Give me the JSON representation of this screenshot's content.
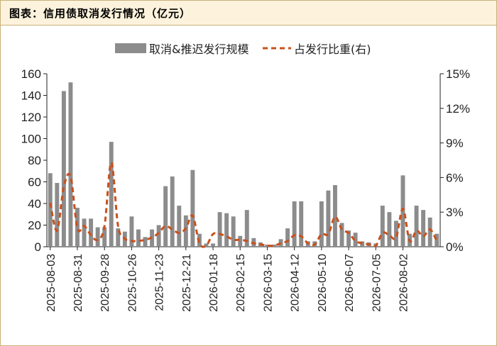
{
  "header": {
    "title": "图表：信用债取消发行情况（亿元）"
  },
  "chart_data": {
    "type": "bar+line",
    "legend": {
      "bar_label": "取消&推迟发行规模",
      "line_label": "占发行比重(右)",
      "position": "top"
    },
    "colors": {
      "bar": "#8c8c8c",
      "line": "#c9501c",
      "frame": "#c9b27a",
      "header_bg": "#fdf2dc"
    },
    "left_axis": {
      "ylim": [
        0,
        160
      ],
      "ticks": [
        "0",
        "20",
        "40",
        "60",
        "80",
        "100",
        "120",
        "140",
        "160"
      ]
    },
    "right_axis": {
      "ylim": [
        0,
        15
      ],
      "ticks": [
        "0%",
        "3%",
        "6%",
        "9%",
        "12%",
        "15%"
      ]
    },
    "x_tick_labels": [
      "2025-08-03",
      "2025-08-31",
      "2025-09-28",
      "2025-10-26",
      "2025-11-23",
      "2025-12-21",
      "2026-01-18",
      "2026-02-15",
      "2026-03-15",
      "2026-04-12",
      "2026-05-10",
      "2026-06-07",
      "2026-07-05",
      "2026-08-02"
    ],
    "grid": false,
    "bar_values": [
      68,
      59,
      144,
      152,
      36,
      26,
      26,
      18,
      18,
      97,
      17,
      14,
      28,
      16,
      9,
      16,
      20,
      56,
      65,
      38,
      29,
      71,
      12,
      3,
      3,
      32,
      31,
      28,
      10,
      34,
      8,
      4,
      2,
      2,
      7,
      17,
      42,
      42,
      5,
      5,
      42,
      52,
      57,
      22,
      15,
      13,
      5,
      4,
      3,
      38,
      32,
      24,
      66,
      12,
      38,
      34,
      27,
      12
    ],
    "line_values": [
      3.8,
      1.4,
      5.2,
      6.1,
      1.6,
      1.8,
      1.0,
      0.6,
      1.8,
      7.3,
      1.8,
      0.7,
      0.5,
      0.5,
      0.6,
      0.8,
      1.2,
      1.8,
      1.5,
      1.2,
      1.6,
      2.7,
      0.3,
      0.1,
      1.1,
      1.1,
      0.9,
      0.6,
      0.6,
      0.5,
      0.3,
      0.2,
      0.1,
      0.1,
      0.3,
      0.5,
      1.0,
      0.9,
      0.3,
      0.2,
      1.1,
      1.1,
      2.6,
      1.5,
      1.2,
      0.5,
      0.3,
      0.2,
      0.1,
      1.2,
      1.0,
      0.8,
      3.3,
      0.5,
      1.4,
      0.9,
      1.5,
      0.5
    ]
  }
}
